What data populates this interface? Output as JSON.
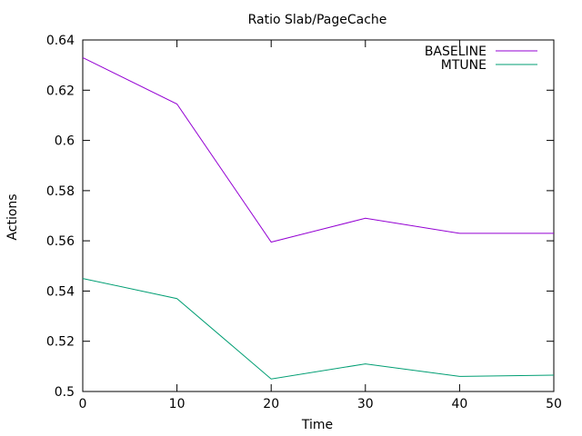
{
  "chart_data": {
    "type": "line",
    "title": "Ratio Slab/PageCache",
    "xlabel": "Time",
    "ylabel": "Actions",
    "xlim": [
      0,
      50
    ],
    "ylim": [
      0.5,
      0.64
    ],
    "xticks": [
      0,
      10,
      20,
      30,
      40,
      50
    ],
    "yticks": [
      0.5,
      0.52,
      0.54,
      0.56,
      0.58,
      0.6,
      0.62,
      0.64
    ],
    "xtick_labels": [
      "0",
      "10",
      "20",
      "30",
      "40",
      "50"
    ],
    "ytick_labels": [
      "0.5",
      "0.52",
      "0.54",
      "0.56",
      "0.58",
      "0.6",
      "0.62",
      "0.64"
    ],
    "grid": false,
    "legend_position": "top-right",
    "x": [
      0,
      10,
      20,
      30,
      40,
      50
    ],
    "series": [
      {
        "name": "BASELINE",
        "color": "#9400d3",
        "values": [
          0.633,
          0.6145,
          0.5595,
          0.569,
          0.563,
          0.563
        ]
      },
      {
        "name": "MTUNE",
        "color": "#009e73",
        "values": [
          0.545,
          0.537,
          0.505,
          0.511,
          0.506,
          0.5065
        ]
      }
    ]
  }
}
